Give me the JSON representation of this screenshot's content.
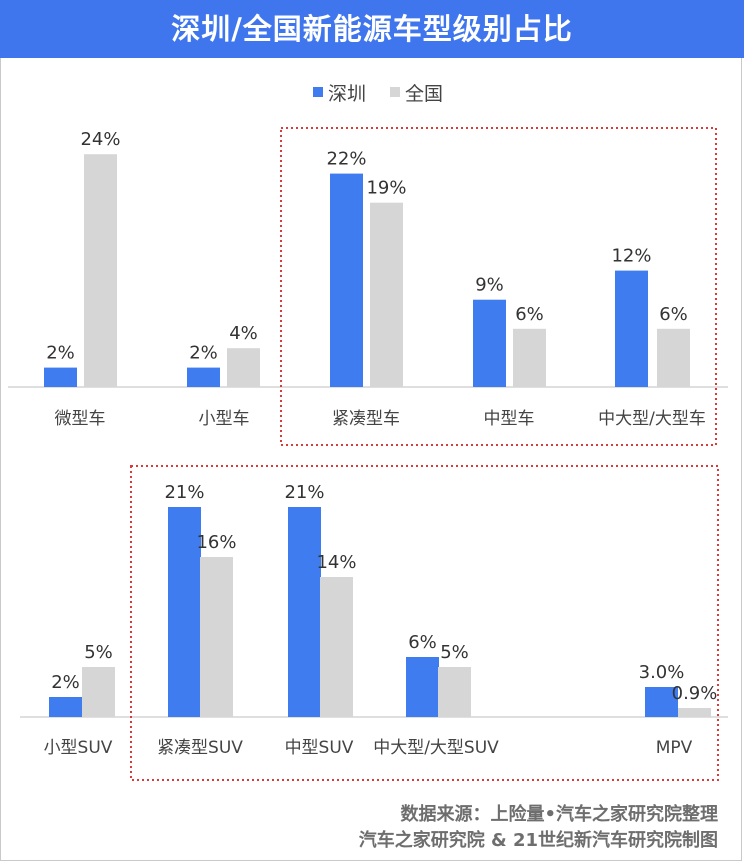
{
  "title": "深圳/全国新能源车型级别占比",
  "legend": [
    "深圳",
    "全国"
  ],
  "colors": {
    "title_bg": "#3f76ee",
    "shenzhen": "#3f7cf0",
    "national": "#d6d6d6",
    "highlight_box": "#d93b3b",
    "axis": "#bfbfbf"
  },
  "source_line1": "数据来源：上险量•汽车之家研究院整理",
  "source_line2": "汽车之家研究院 & 21世纪新汽车研究院制图",
  "chart_data": [
    {
      "type": "bar",
      "categories": [
        "微型车",
        "小型车",
        "紧凑型车",
        "中型车",
        "中大型/大型车"
      ],
      "series": [
        {
          "name": "深圳",
          "values": [
            2,
            2,
            22,
            9,
            12
          ],
          "labels": [
            "2%",
            "2%",
            "22%",
            "9%",
            "12%"
          ]
        },
        {
          "name": "全国",
          "values": [
            24,
            4,
            19,
            6,
            6
          ],
          "labels": [
            "24%",
            "4%",
            "19%",
            "6%",
            "6%"
          ]
        }
      ],
      "highlighted_categories": [
        "紧凑型车",
        "中型车",
        "中大型/大型车"
      ],
      "legend_position": "top-center",
      "grid": false
    },
    {
      "type": "bar",
      "categories": [
        "小型SUV",
        "紧凑型SUV",
        "中型SUV",
        "中大型/大型SUV",
        "MPV"
      ],
      "series": [
        {
          "name": "深圳",
          "values": [
            2,
            21,
            21,
            6,
            3.0
          ],
          "labels": [
            "2%",
            "21%",
            "21%",
            "6%",
            "3.0%"
          ]
        },
        {
          "name": "全国",
          "values": [
            5,
            16,
            14,
            5,
            0.9
          ],
          "labels": [
            "5%",
            "16%",
            "14%",
            "5%",
            "0.9%"
          ]
        }
      ],
      "highlighted_categories": [
        "紧凑型SUV",
        "中型SUV",
        "中大型/大型SUV",
        "MPV"
      ],
      "grid": false
    }
  ]
}
